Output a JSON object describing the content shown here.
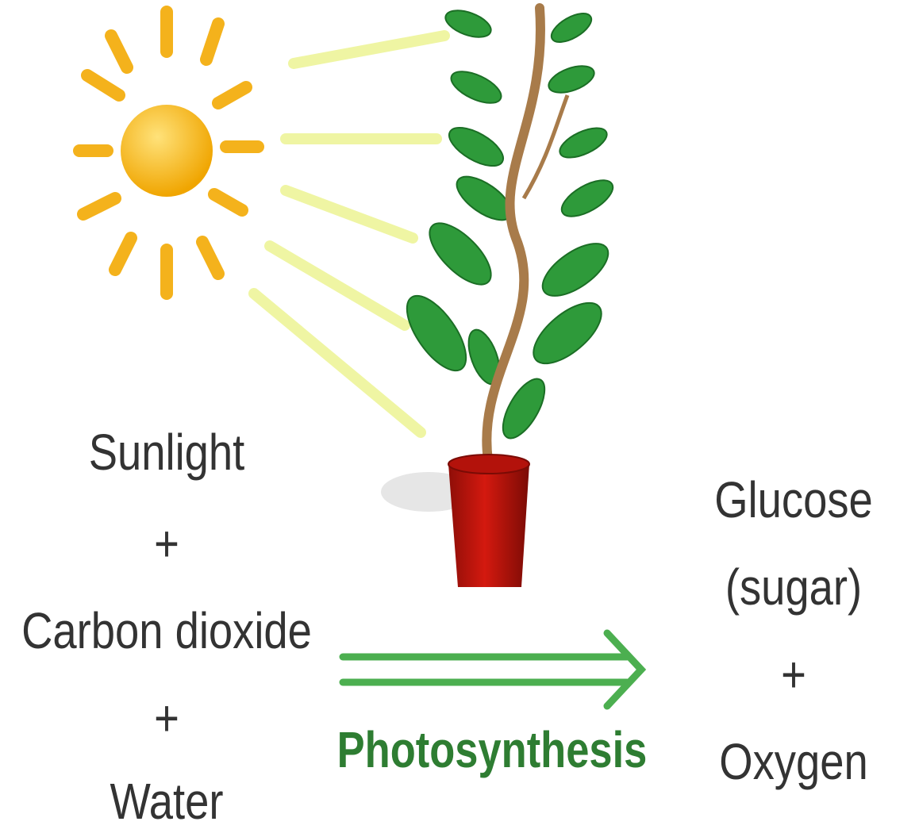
{
  "reactants": [
    "Sunlight",
    "+",
    "Carbon dioxide",
    "+",
    "Water"
  ],
  "process": "Photosynthesis",
  "products": [
    "Glucose",
    "(sugar)",
    "+",
    "Oxygen"
  ]
}
